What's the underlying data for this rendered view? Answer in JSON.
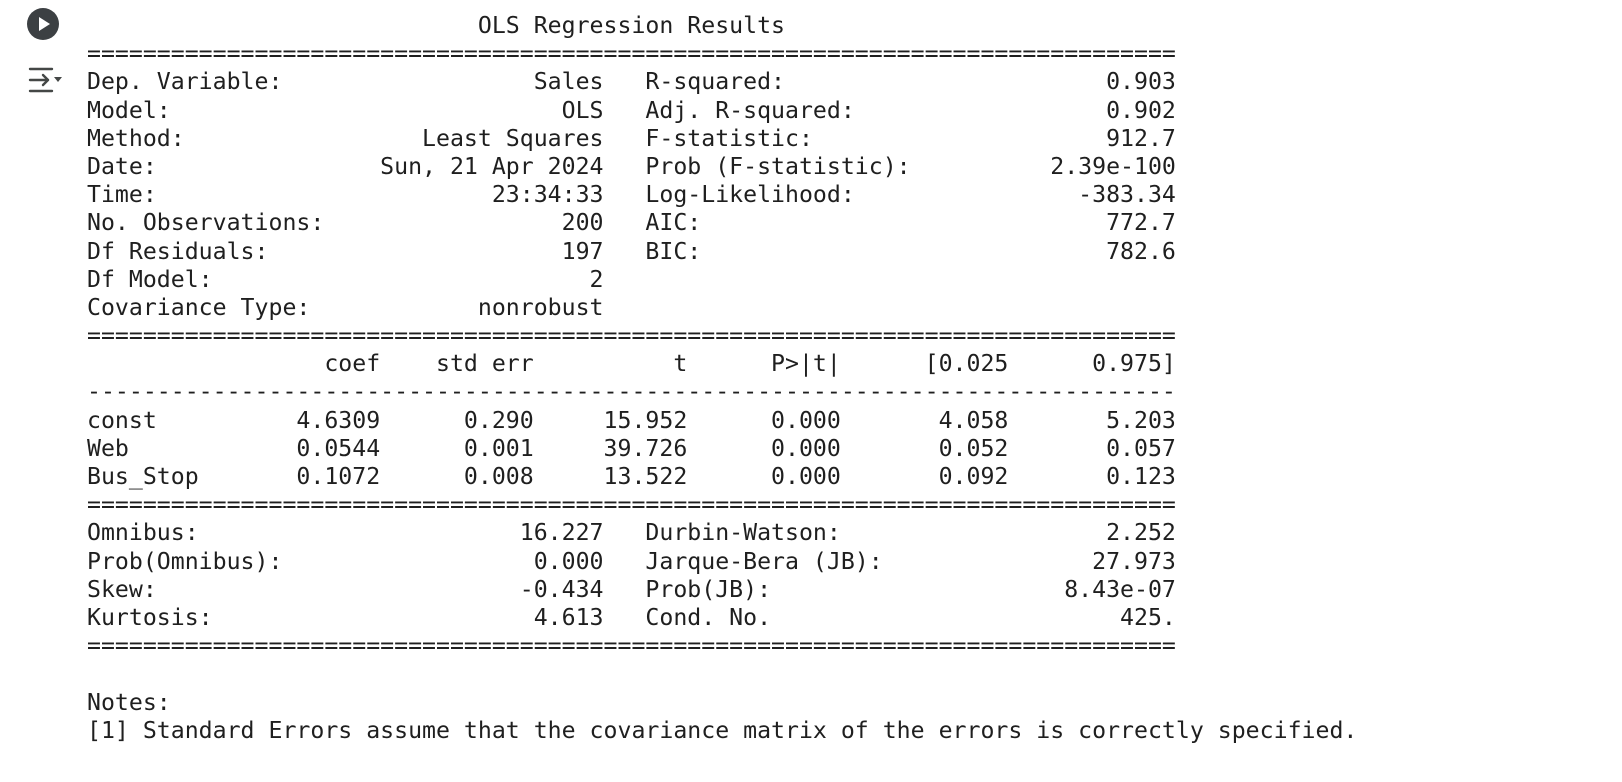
{
  "cell": {
    "run_icon": "play-circle-icon",
    "output_icon": "output-collapse-icon"
  },
  "output": {
    "lines": [
      "                            OLS Regression Results                            ",
      "==============================================================================",
      "Dep. Variable:                  Sales   R-squared:                       0.903",
      "Model:                            OLS   Adj. R-squared:                  0.902",
      "Method:                 Least Squares   F-statistic:                     912.7",
      "Date:                Sun, 21 Apr 2024   Prob (F-statistic):          2.39e-100",
      "Time:                        23:34:33   Log-Likelihood:                -383.34",
      "No. Observations:                 200   AIC:                             772.7",
      "Df Residuals:                     197   BIC:                             782.6",
      "Df Model:                           2                                         ",
      "Covariance Type:            nonrobust                                         ",
      "==============================================================================",
      "                 coef    std err          t      P>|t|      [0.025      0.975]",
      "------------------------------------------------------------------------------",
      "const          4.6309      0.290     15.952      0.000       4.058       5.203",
      "Web            0.0544      0.001     39.726      0.000       0.052       0.057",
      "Bus_Stop       0.1072      0.008     13.522      0.000       0.092       0.123",
      "==============================================================================",
      "Omnibus:                       16.227   Durbin-Watson:                   2.252",
      "Prob(Omnibus):                  0.000   Jarque-Bera (JB):               27.973",
      "Skew:                          -0.434   Prob(JB):                     8.43e-07",
      "Kurtosis:                       4.613   Cond. No.                         425.",
      "==============================================================================",
      "",
      "Notes:",
      "[1] Standard Errors assume that the covariance matrix of the errors is correctly specified."
    ]
  }
}
